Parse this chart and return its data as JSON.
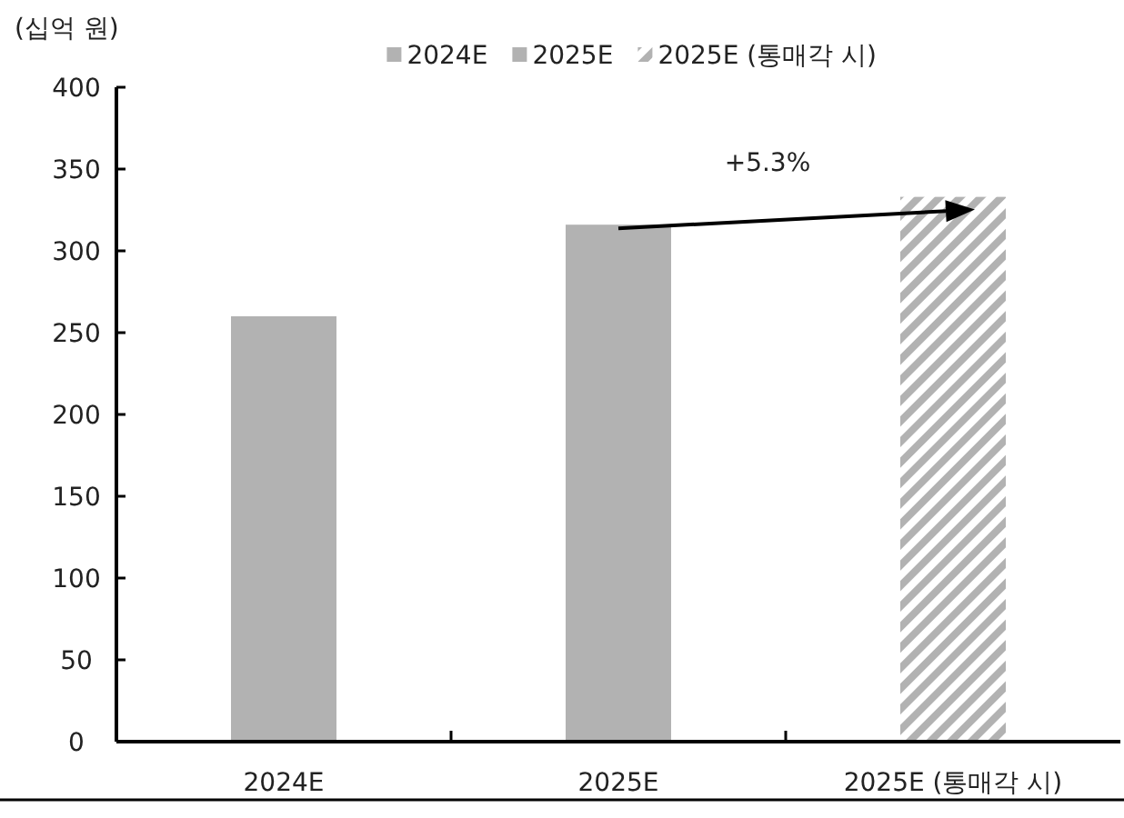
{
  "chart_data": {
    "type": "bar",
    "ylabel": "(십억 원)",
    "categories": [
      "2024E",
      "2025E",
      "2025E (통매각 시)"
    ],
    "series": [
      {
        "name": "2024E",
        "color": "#b2b2b2",
        "values": [
          260,
          null,
          null
        ]
      },
      {
        "name": "2025E",
        "color": "#b2b2b2",
        "values": [
          null,
          316,
          null
        ]
      },
      {
        "name": "2025E (통매각 시)",
        "color": "#b2b2b2",
        "values": [
          null,
          null,
          333
        ]
      }
    ],
    "ylim": [
      0,
      400
    ],
    "yticks": [
      0,
      50,
      100,
      150,
      200,
      250,
      300,
      350,
      400
    ],
    "grid": false,
    "legend": "top",
    "annotations": [
      "+5.3%"
    ]
  }
}
